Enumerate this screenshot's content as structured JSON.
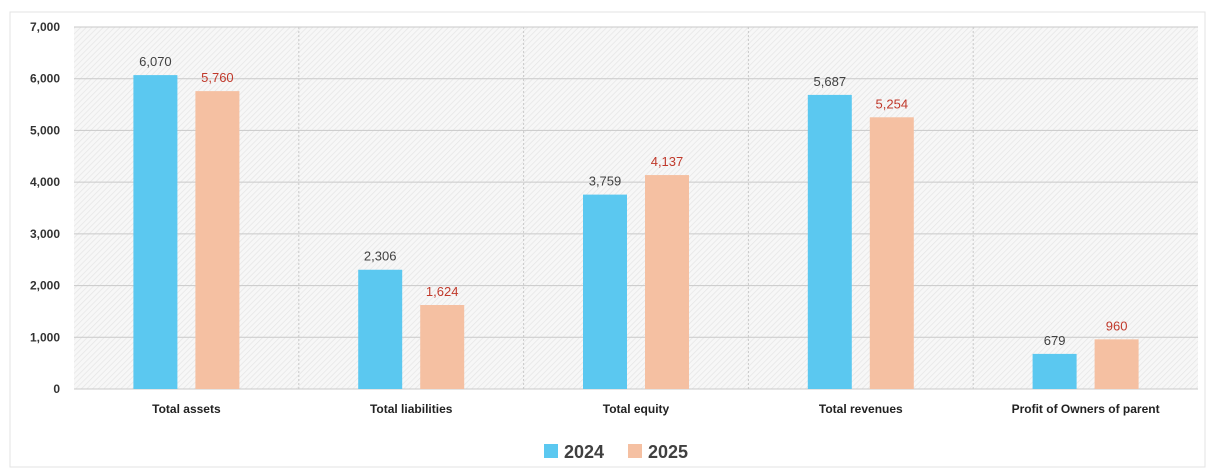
{
  "colors": {
    "series_2024": "#5BC8F0",
    "series_2025": "#F5C0A2",
    "label_2024": "#404040",
    "label_2025": "#C0392B"
  },
  "chart_data": {
    "type": "bar",
    "title": "",
    "xlabel": "",
    "ylabel": "",
    "ylim": [
      0,
      7000
    ],
    "yticks": [
      0,
      1000,
      2000,
      3000,
      4000,
      5000,
      6000,
      7000
    ],
    "ytick_labels": [
      "0",
      "1,000",
      "2,000",
      "3,000",
      "4,000",
      "5,000",
      "6,000",
      "7,000"
    ],
    "categories": [
      "Total assets",
      "Total liabilities",
      "Total equity",
      "Total revenues",
      "Profit of Owners of parent"
    ],
    "series": [
      {
        "name": "2024",
        "values": [
          6070,
          2306,
          3759,
          5687,
          679
        ],
        "labels": [
          "6,070",
          "2,306",
          "3,759",
          "5,687",
          "679"
        ]
      },
      {
        "name": "2025",
        "values": [
          5760,
          1624,
          4137,
          5254,
          960
        ],
        "labels": [
          "5,760",
          "1,624",
          "4,137",
          "5,254",
          "960"
        ]
      }
    ],
    "grid": true,
    "legend_position": "bottom"
  }
}
